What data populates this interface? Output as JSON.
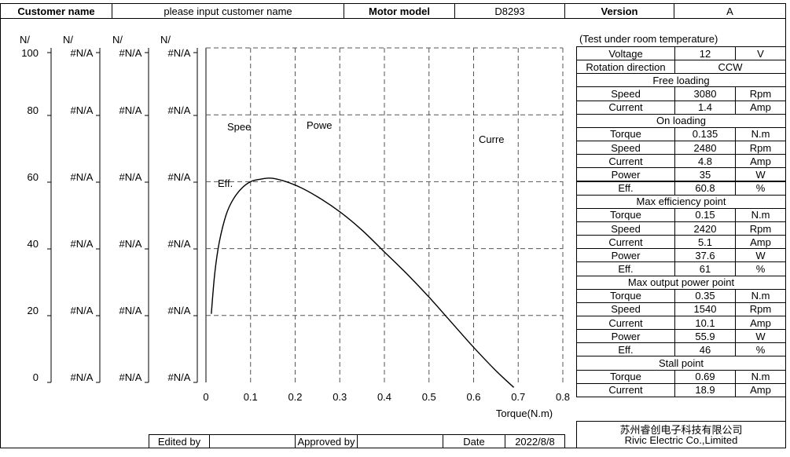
{
  "header": {
    "customer_label": "Customer name",
    "customer_value": "please input customer name",
    "motor_label": "Motor model",
    "motor_value": "D8293",
    "version_label": "Version",
    "version_value": "A"
  },
  "axes": {
    "left_headers": [
      "N/",
      "N/",
      "N/",
      "N/"
    ],
    "left_ticks": [
      "100",
      "80",
      "60",
      "40",
      "20",
      "0"
    ],
    "na_value": "#N/A"
  },
  "chart_data": {
    "type": "line",
    "xlabel": "Torque(N.m)",
    "xlim": [
      0,
      0.8
    ],
    "x_ticks": [
      "0",
      "0.1",
      "0.2",
      "0.3",
      "0.4",
      "0.5",
      "0.6",
      "0.7",
      "0.8"
    ],
    "ylim": [
      0,
      100
    ],
    "series_labels": {
      "speed": "Spee",
      "power": "Powe",
      "current": "Curre",
      "efficiency": "Eff."
    },
    "series": [
      {
        "name": "Efficiency",
        "x": [
          0.012,
          0.02,
          0.03,
          0.045,
          0.06,
          0.08,
          0.1,
          0.12,
          0.15,
          0.2,
          0.25,
          0.3,
          0.35,
          0.4,
          0.45,
          0.5,
          0.55,
          0.6,
          0.65,
          0.69
        ],
        "y": [
          20.5,
          33,
          42,
          50,
          54.5,
          58,
          60,
          60.7,
          61,
          59,
          55.5,
          51,
          45.5,
          39,
          32.5,
          25.5,
          18,
          10.5,
          3.5,
          -1.5
        ]
      }
    ]
  },
  "spec": {
    "test_note": "(Test under room temperature)",
    "voltage": {
      "label": "Voltage",
      "value": "12",
      "unit": "V"
    },
    "rotation": {
      "label": "Rotation direction",
      "value": "CCW"
    },
    "free_loading": {
      "title": "Free loading",
      "rows": [
        {
          "label": "Speed",
          "value": "3080",
          "unit": "Rpm"
        },
        {
          "label": "Current",
          "value": "1.4",
          "unit": "Amp"
        }
      ]
    },
    "on_loading": {
      "title": "On loading",
      "rows": [
        {
          "label": "Torque",
          "value": "0.135",
          "unit": "N.m"
        },
        {
          "label": "Speed",
          "value": "2480",
          "unit": "Rpm"
        },
        {
          "label": "Current",
          "value": "4.8",
          "unit": "Amp"
        },
        {
          "label": "Power",
          "value": "35",
          "unit": "W"
        },
        {
          "label": "Eff.",
          "value": "60.8",
          "unit": "%"
        }
      ]
    },
    "max_efficiency": {
      "title": "Max efficiency point",
      "rows": [
        {
          "label": "Torque",
          "value": "0.15",
          "unit": "N.m"
        },
        {
          "label": "Speed",
          "value": "2420",
          "unit": "Rpm"
        },
        {
          "label": "Current",
          "value": "5.1",
          "unit": "Amp"
        },
        {
          "label": "Power",
          "value": "37.6",
          "unit": "W"
        },
        {
          "label": "Eff.",
          "value": "61",
          "unit": "%"
        }
      ]
    },
    "max_output": {
      "title": "Max output power point",
      "rows": [
        {
          "label": "Torque",
          "value": "0.35",
          "unit": "N.m"
        },
        {
          "label": "Speed",
          "value": "1540",
          "unit": "Rpm"
        },
        {
          "label": "Current",
          "value": "10.1",
          "unit": "Amp"
        },
        {
          "label": "Power",
          "value": "55.9",
          "unit": "W"
        },
        {
          "label": "Eff.",
          "value": "46",
          "unit": "%"
        }
      ]
    },
    "stall": {
      "title": "Stall point",
      "rows": [
        {
          "label": "Torque",
          "value": "0.69",
          "unit": "N.m"
        },
        {
          "label": "Current",
          "value": "18.9",
          "unit": "Amp"
        }
      ]
    }
  },
  "footer": {
    "edited_label": "Edited by",
    "approved_label": "Approved by",
    "date_label": "Date",
    "date_value": "2022/8/8",
    "company_cn": "苏州睿创电子科技有限公司",
    "company_en": "Rivic Electric Co.,Limited"
  }
}
